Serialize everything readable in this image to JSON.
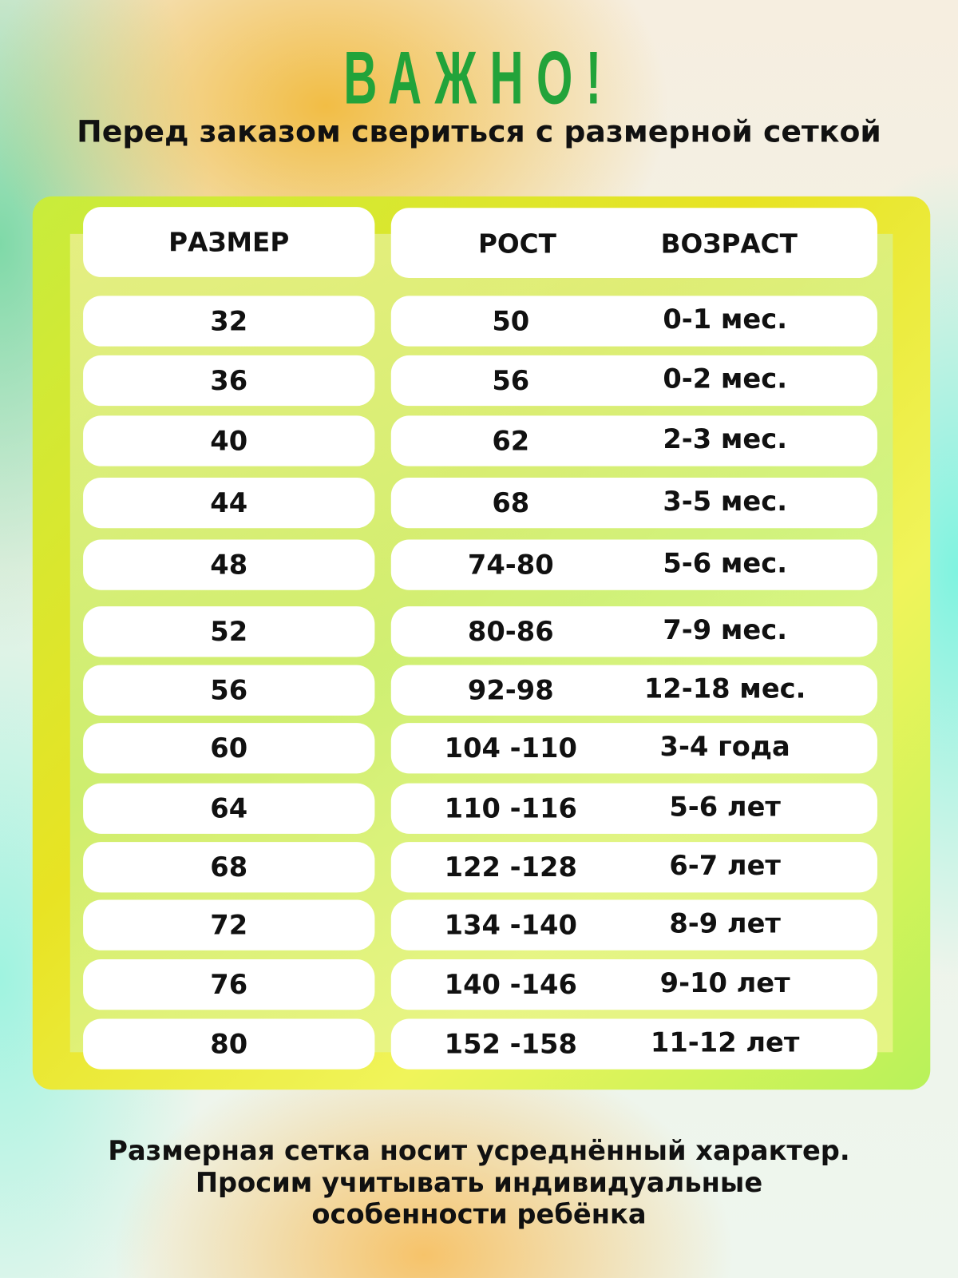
{
  "title": "ВАЖНО!",
  "subtitle": "Перед заказом свериться с размерной сеткой",
  "table": {
    "headers": {
      "size": "РАЗМЕР",
      "height": "РОСТ",
      "age": "ВОЗРАСТ"
    },
    "rows": [
      {
        "size": "32",
        "height": "50",
        "age": "0-1 мес."
      },
      {
        "size": "36",
        "height": "56",
        "age": "0-2 мес."
      },
      {
        "size": "40",
        "height": "62",
        "age": "2-3 мес."
      },
      {
        "size": "44",
        "height": "68",
        "age": "3-5 мес."
      },
      {
        "size": "48",
        "height": "74-80",
        "age": "5-6 мес."
      },
      {
        "size": "52",
        "height": "80-86",
        "age": "7-9 мес."
      },
      {
        "size": "56",
        "height": "92-98",
        "age": "12-18 мес."
      },
      {
        "size": "60",
        "height": "104 -110",
        "age": "3-4 года"
      },
      {
        "size": "64",
        "height": "110 -116",
        "age": "5-6 лет"
      },
      {
        "size": "68",
        "height": "122 -128",
        "age": "6-7 лет"
      },
      {
        "size": "72",
        "height": "134 -140",
        "age": "8-9 лет"
      },
      {
        "size": "76",
        "height": "140 -146",
        "age": "9-10 лет"
      },
      {
        "size": "80",
        "height": "152 -158",
        "age": "11-12 лет"
      }
    ]
  },
  "footer": {
    "line1": "Размерная сетка носит усреднённый характер.",
    "line2": "Просим учитывать индивидуальные",
    "line3": "особенности ребёнка"
  },
  "colors": {
    "title": "#22a33a",
    "panel": "#e8e323"
  }
}
